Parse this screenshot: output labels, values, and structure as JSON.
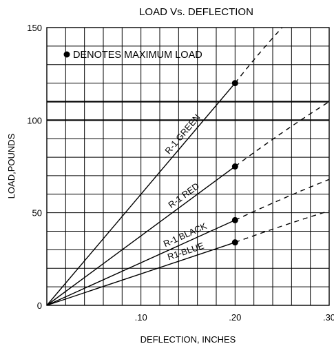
{
  "chart_data": {
    "type": "line",
    "title": "LOAD Vs. DEFLECTION",
    "xlabel": "DEFLECTION, INCHES",
    "ylabel": "LOAD,POUNDS",
    "xlim": [
      0,
      0.3
    ],
    "ylim": [
      0,
      150
    ],
    "x_tick_labels": [
      ".10",
      ".20",
      ".30"
    ],
    "x_ticks": [
      0.1,
      0.2,
      0.3
    ],
    "y_tick_labels": [
      "0",
      "50",
      "100",
      "150"
    ],
    "y_ticks": [
      0,
      50,
      100,
      150
    ],
    "x_grid_step": 0.02,
    "y_grid_step": 10,
    "grid": true,
    "reference_lines_y": [
      100,
      110
    ],
    "annotation": "DENOTES MAXIMUM LOAD",
    "series": [
      {
        "name": "R-1 GREEN",
        "max_load": {
          "x": 0.2,
          "y": 120
        },
        "solid_to_x": 0.2,
        "extend_to": {
          "x": 0.25,
          "y": 150
        }
      },
      {
        "name": "R-1 RED",
        "max_load": {
          "x": 0.2,
          "y": 75
        },
        "solid_to_x": 0.2,
        "extend_to": {
          "x": 0.3,
          "y": 110
        }
      },
      {
        "name": "R-1 BLACK",
        "max_load": {
          "x": 0.2,
          "y": 46
        },
        "solid_to_x": 0.2,
        "extend_to": {
          "x": 0.3,
          "y": 68
        }
      },
      {
        "name": "R1-BLUE",
        "max_load": {
          "x": 0.2,
          "y": 34
        },
        "solid_to_x": 0.2,
        "extend_to": {
          "x": 0.3,
          "y": 51
        }
      }
    ]
  }
}
